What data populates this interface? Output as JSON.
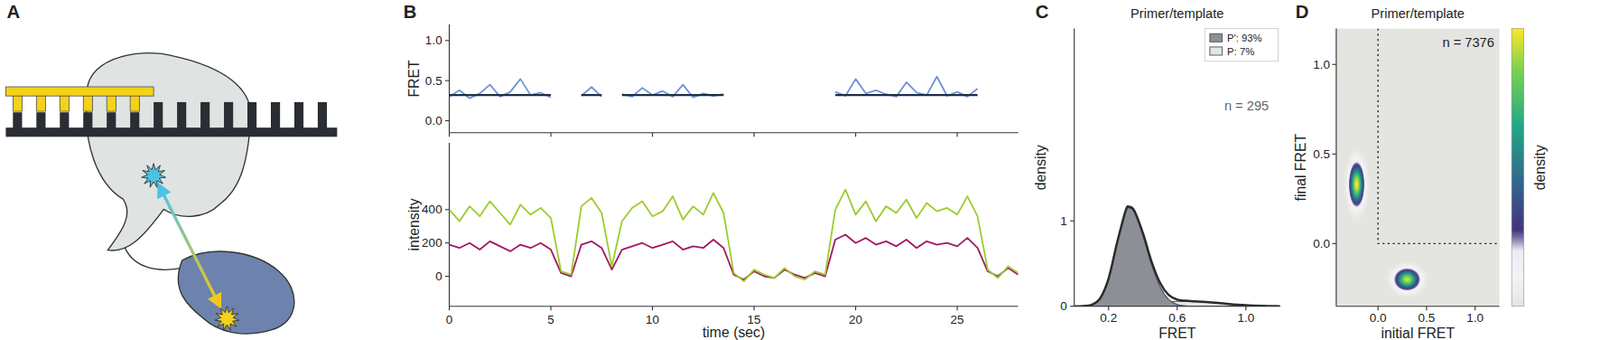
{
  "chart_data": [
    {
      "type": "diagram",
      "panel": "A"
    },
    {
      "type": "line",
      "panel": "B",
      "x": [
        0,
        0.5,
        1,
        1.5,
        2,
        2.5,
        3,
        3.5,
        4,
        4.5,
        5,
        5.5,
        6,
        6.5,
        7,
        7.5,
        8,
        8.5,
        9,
        9.5,
        10,
        10.5,
        11,
        11.5,
        12,
        12.5,
        13,
        13.5,
        14,
        14.5,
        15,
        15.5,
        16,
        16.5,
        17,
        17.5,
        18,
        18.5,
        19,
        19.5,
        20,
        20.5,
        21,
        21.5,
        22,
        22.5,
        23,
        23.5,
        24,
        24.5,
        25,
        25.5,
        26,
        26.5,
        27,
        27.5,
        28
      ],
      "xlim": [
        0,
        28
      ],
      "xticks": [
        0,
        5,
        10,
        15,
        20,
        25
      ],
      "ylim": [
        -0.15,
        1.2
      ],
      "yticks": [
        {
          "value": 0,
          "label": "0.0"
        },
        0.5,
        {
          "value": 1,
          "label": "1.0"
        }
      ],
      "y_label": "FRET",
      "tick_labels": "y",
      "series": [
        {
          "color": "#6f94d6",
          "values": [
            0.3,
            0.38,
            0.28,
            0.34,
            0.45,
            0.3,
            0.36,
            0.52,
            0.32,
            0.35,
            0.29,
            null,
            null,
            0.31,
            0.42,
            0.3,
            null,
            0.33,
            0.3,
            0.41,
            0.32,
            0.37,
            0.3,
            0.45,
            0.29,
            0.34,
            0.31,
            0.33,
            null,
            null,
            null,
            null,
            null,
            null,
            null,
            null,
            null,
            null,
            0.36,
            0.31,
            0.52,
            0.34,
            0.38,
            0.33,
            0.3,
            0.48,
            0.35,
            0.32,
            0.55,
            0.31,
            0.36,
            0.3,
            0.4,
            null,
            null,
            null,
            null
          ]
        },
        {
          "color": "#1c2e4a",
          "values": [
            0.32,
            0.32,
            0.32,
            0.32,
            0.32,
            0.32,
            0.32,
            0.32,
            0.32,
            0.32,
            0.32,
            null,
            null,
            0.32,
            0.32,
            0.32,
            null,
            0.32,
            0.32,
            0.32,
            0.32,
            0.32,
            0.32,
            0.32,
            0.32,
            0.32,
            0.32,
            0.32,
            null,
            null,
            null,
            null,
            null,
            null,
            null,
            null,
            null,
            null,
            0.32,
            0.32,
            0.32,
            0.32,
            0.32,
            0.32,
            0.32,
            0.32,
            0.32,
            0.32,
            0.32,
            0.32,
            0.32,
            0.32,
            0.32,
            null,
            null,
            null,
            null
          ]
        }
      ]
    },
    {
      "type": "line",
      "x": [
        0,
        0.5,
        1,
        1.5,
        2,
        2.5,
        3,
        3.5,
        4,
        4.5,
        5,
        5.5,
        6,
        6.5,
        7,
        7.5,
        8,
        8.5,
        9,
        9.5,
        10,
        10.5,
        11,
        11.5,
        12,
        12.5,
        13,
        13.5,
        14,
        14.5,
        15,
        15.5,
        16,
        16.5,
        17,
        17.5,
        18,
        18.5,
        19,
        19.5,
        20,
        20.5,
        21,
        21.5,
        22,
        22.5,
        23,
        23.5,
        24,
        24.5,
        25,
        25.5,
        26,
        26.5,
        27,
        27.5,
        28
      ],
      "xlim": [
        0,
        28
      ],
      "xticks": [
        0,
        5,
        10,
        15,
        20,
        25
      ],
      "ylim": [
        -180,
        800
      ],
      "yticks": [
        0,
        200,
        400
      ],
      "x_label": "time (sec)",
      "y_label": "intensity",
      "series": [
        {
          "color": "#a0195f",
          "values": [
            190,
            170,
            200,
            160,
            210,
            180,
            150,
            190,
            170,
            200,
            160,
            20,
            0,
            190,
            210,
            170,
            40,
            160,
            180,
            200,
            170,
            190,
            210,
            160,
            180,
            170,
            220,
            170,
            10,
            -20,
            30,
            0,
            -10,
            40,
            10,
            -10,
            20,
            0,
            220,
            250,
            200,
            230,
            190,
            210,
            180,
            220,
            170,
            210,
            190,
            200,
            180,
            230,
            170,
            30,
            0,
            50,
            10
          ]
        },
        {
          "color": "#9ccc2e",
          "values": [
            400,
            330,
            420,
            360,
            450,
            380,
            310,
            430,
            370,
            410,
            350,
            30,
            10,
            420,
            470,
            380,
            60,
            330,
            410,
            450,
            360,
            390,
            480,
            340,
            420,
            370,
            500,
            380,
            20,
            -30,
            40,
            10,
            -10,
            50,
            0,
            -20,
            30,
            10,
            400,
            520,
            370,
            450,
            330,
            420,
            380,
            460,
            350,
            440,
            390,
            410,
            370,
            480,
            360,
            40,
            -10,
            60,
            20
          ]
        }
      ]
    },
    {
      "type": "area",
      "panel": "C",
      "title": "Primer/template",
      "x": [
        0,
        0.05,
        0.1,
        0.15,
        0.2,
        0.25,
        0.3,
        0.32,
        0.35,
        0.4,
        0.45,
        0.5,
        0.55,
        0.6,
        0.65,
        0.7,
        0.8,
        0.9,
        1.0,
        1.1,
        1.2
      ],
      "xlim": [
        0,
        1.2
      ],
      "xticks": [
        0.2,
        0.6,
        {
          "value": 1,
          "label": "1.0"
        }
      ],
      "ylim": [
        0,
        3.25
      ],
      "yticks": [
        0,
        1
      ],
      "x_label": "FRET",
      "y_label": "density",
      "legend": "upper right",
      "annotation": "n = 295",
      "series": [
        {
          "name": "P': 93%",
          "color": "#8c9096",
          "values": [
            0,
            0.002,
            0.016,
            0.088,
            0.32,
            0.74,
            1.11,
            1.15,
            1.1,
            0.83,
            0.49,
            0.23,
            0.08,
            0.02,
            0.005,
            0,
            0,
            0,
            0,
            0,
            0
          ]
        },
        {
          "name": "P: 7%",
          "color": "#dfe9df",
          "values": [
            0,
            0.001,
            0.001,
            0.003,
            0.005,
            0.008,
            0.013,
            0.015,
            0.019,
            0.027,
            0.036,
            0.045,
            0.053,
            0.058,
            0.06,
            0.058,
            0.045,
            0.027,
            0.013,
            0.005,
            0.001
          ]
        },
        {
          "type": "line",
          "color": "#2b2b2b",
          "values": [
            0,
            0.003,
            0.017,
            0.091,
            0.325,
            0.748,
            1.123,
            1.165,
            1.119,
            0.857,
            0.526,
            0.275,
            0.133,
            0.078,
            0.065,
            0.058,
            0.045,
            0.027,
            0.013,
            0.005,
            0.001
          ]
        }
      ]
    },
    {
      "type": "heatmap",
      "panel": "D",
      "title": "Primer/template",
      "xlim": [
        -0.43,
        1.25
      ],
      "xticks": [
        {
          "value": 0,
          "label": "0.0"
        },
        0.5,
        {
          "value": 1,
          "label": "1.0"
        }
      ],
      "ylim": [
        -0.35,
        1.2
      ],
      "yticks": [
        {
          "value": 0,
          "label": "0.0"
        },
        0.5,
        {
          "value": 1,
          "label": "1.0"
        }
      ],
      "x_label": "initial FRET",
      "y_label": "final FRET",
      "annotation": "n = 7376",
      "quadrant": {
        "x": 0,
        "y": 0
      },
      "colorbar_label": "density",
      "colorbar_range": [
        0,
        1
      ],
      "peaks": [
        {
          "x": -0.22,
          "y": 0.33,
          "x_spread": 0.045,
          "y_spread": 0.07,
          "density": 1
        },
        {
          "x": 0.3,
          "y": -0.2,
          "x_spread": 0.075,
          "y_spread": 0.035,
          "density": 0.95
        }
      ]
    }
  ]
}
